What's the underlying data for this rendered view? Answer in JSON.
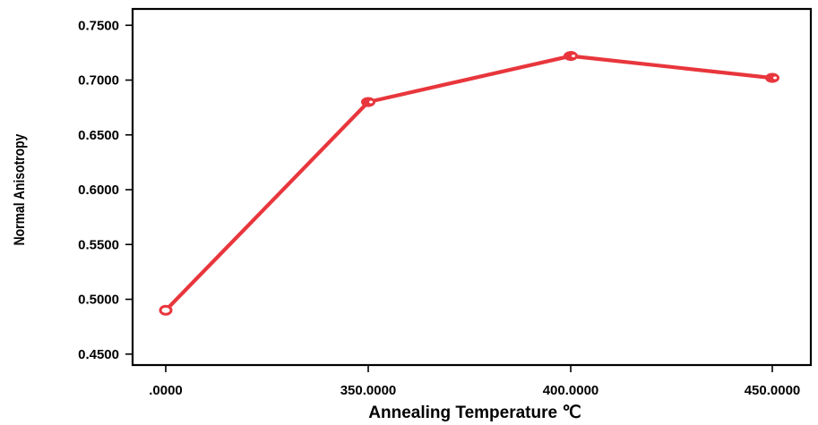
{
  "chart_data": {
    "type": "line",
    "title": "",
    "xlabel": "Annealing Temperature ℃",
    "ylabel": "Normal Anisotropy",
    "categories": [
      ".0000",
      "350.0000",
      "400.0000",
      "450.0000"
    ],
    "series": [
      {
        "values": [
          0.49,
          0.68,
          0.722,
          0.702
        ],
        "color": "#e8363c"
      }
    ],
    "ylim": [
      0.44,
      0.7649
    ],
    "yticks": [
      0.45,
      0.5,
      0.55,
      0.6,
      0.65,
      0.7,
      0.75
    ],
    "ytick_labels": [
      "0.4500",
      "0.5000",
      "0.5500",
      "0.6000",
      "0.6500",
      "0.7000",
      "0.7500"
    ],
    "grid": false,
    "legend": "none"
  }
}
